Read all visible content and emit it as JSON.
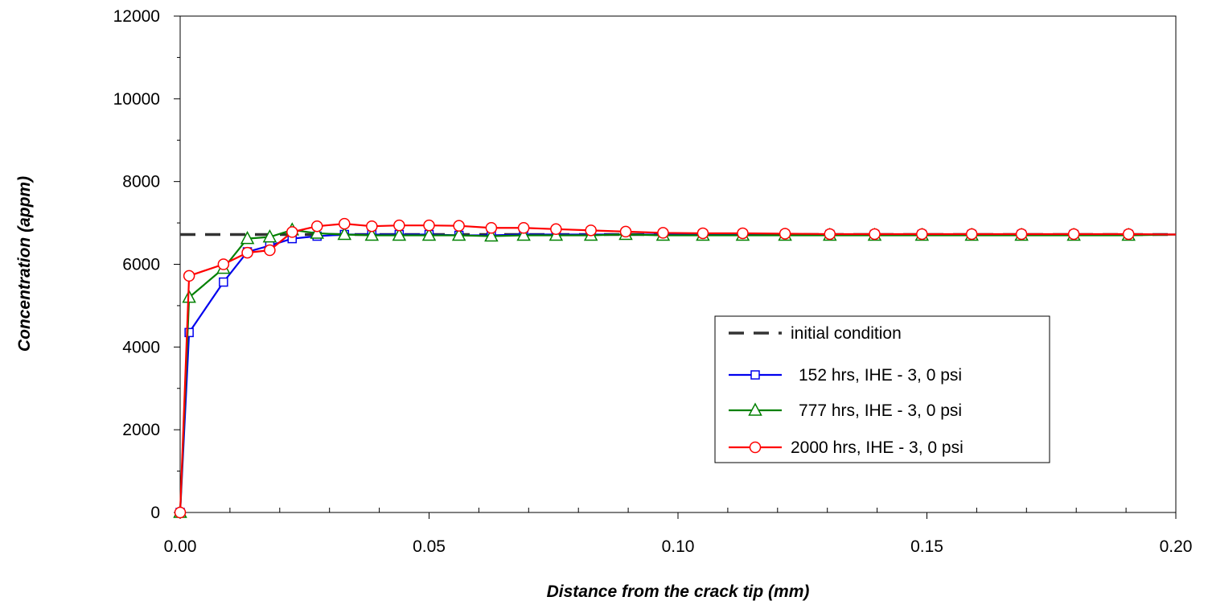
{
  "chart_data": {
    "type": "line",
    "title": "",
    "xlabel": "Distance from the crack tip (mm)",
    "ylabel": "Concentration (appm)",
    "xlim": [
      0,
      0.2
    ],
    "ylim": [
      0,
      12000
    ],
    "x_ticks": [
      "0.00",
      "0.05",
      "0.10",
      "0.15",
      "0.20"
    ],
    "y_ticks": [
      "0",
      "2000",
      "4000",
      "6000",
      "8000",
      "10000",
      "12000"
    ],
    "grid": false,
    "legend_position": "lower-right",
    "series": [
      {
        "name": "initial condition",
        "style": "dashed",
        "marker": "none",
        "color": "#333333",
        "x": [
          0,
          0.2
        ],
        "y": [
          6720,
          6720
        ]
      },
      {
        "name": "152 hrs, IHE - 3, 0 psi",
        "style": "solid",
        "marker": "square",
        "color": "#0000ee",
        "x": [
          0,
          0.0018,
          0.0087,
          0.0135,
          0.018,
          0.0225,
          0.0275,
          0.033,
          0.0385,
          0.044,
          0.05,
          0.056,
          0.0625,
          0.069,
          0.0755,
          0.0825,
          0.0895,
          0.097,
          0.105,
          0.113,
          0.1215,
          0.1305,
          0.1395,
          0.149,
          0.159,
          0.169,
          0.1795,
          0.1905,
          0.2
        ],
        "y": [
          0,
          4350,
          5570,
          6300,
          6450,
          6620,
          6680,
          6720,
          6720,
          6720,
          6720,
          6700,
          6700,
          6720,
          6720,
          6720,
          6720,
          6720,
          6720,
          6720,
          6720,
          6720,
          6720,
          6720,
          6720,
          6720,
          6720,
          6720,
          6720
        ]
      },
      {
        "name": "777 hrs, IHE - 3, 0 psi",
        "style": "solid",
        "marker": "triangle",
        "color": "#008000",
        "x": [
          0,
          0.0018,
          0.0087,
          0.0135,
          0.018,
          0.0225,
          0.0275,
          0.033,
          0.0385,
          0.044,
          0.05,
          0.056,
          0.0625,
          0.069,
          0.0755,
          0.0825,
          0.0895,
          0.097,
          0.105,
          0.113,
          0.1215,
          0.1305,
          0.1395,
          0.149,
          0.159,
          0.169,
          0.1795,
          0.1905,
          0.2
        ],
        "y": [
          0,
          5200,
          5900,
          6620,
          6660,
          6830,
          6750,
          6720,
          6700,
          6700,
          6700,
          6700,
          6680,
          6700,
          6700,
          6700,
          6720,
          6700,
          6700,
          6700,
          6700,
          6700,
          6700,
          6700,
          6700,
          6700,
          6700,
          6700,
          6720
        ]
      },
      {
        "name": "2000 hrs, IHE - 3, 0 psi",
        "style": "solid",
        "marker": "circle",
        "color": "#ff0000",
        "x": [
          0,
          0.0018,
          0.0087,
          0.0135,
          0.018,
          0.0225,
          0.0275,
          0.033,
          0.0385,
          0.044,
          0.05,
          0.056,
          0.0625,
          0.069,
          0.0755,
          0.0825,
          0.0895,
          0.097,
          0.105,
          0.113,
          0.1215,
          0.1305,
          0.1395,
          0.149,
          0.159,
          0.169,
          0.1795,
          0.1905,
          0.2
        ],
        "y": [
          0,
          5720,
          6000,
          6280,
          6340,
          6780,
          6920,
          6980,
          6920,
          6940,
          6940,
          6930,
          6880,
          6880,
          6850,
          6820,
          6790,
          6760,
          6750,
          6750,
          6740,
          6730,
          6730,
          6730,
          6730,
          6730,
          6730,
          6730,
          6720
        ]
      }
    ]
  }
}
